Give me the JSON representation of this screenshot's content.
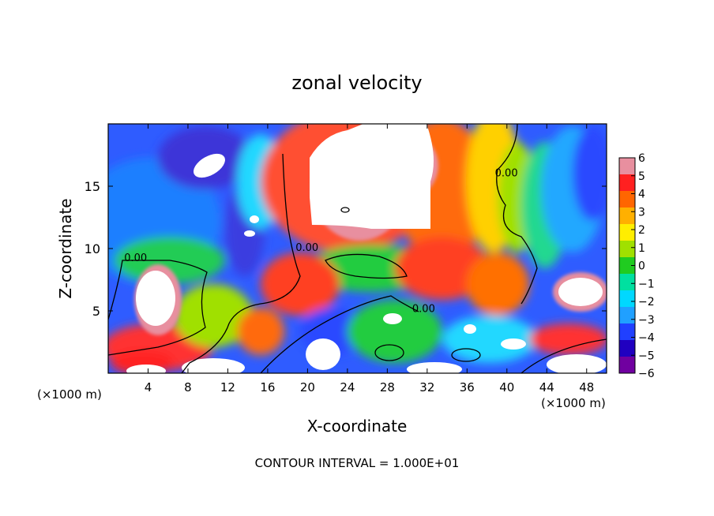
{
  "chart_data": {
    "type": "heatmap",
    "title": "zonal velocity",
    "xlabel": "X-coordinate",
    "ylabel": "Z-coordinate",
    "x_unit_left": "(×1000 m)",
    "x_unit_right": "(×1000 m)",
    "footer": "CONTOUR INTERVAL = 1.000E+01",
    "xlim": [
      0,
      50
    ],
    "ylim": [
      0,
      20
    ],
    "x_ticks": [
      4,
      8,
      12,
      16,
      20,
      24,
      28,
      32,
      36,
      40,
      44,
      48
    ],
    "y_ticks": [
      5,
      10,
      15
    ],
    "colorbar": {
      "ticks": [
        6,
        5,
        4,
        3,
        2,
        1,
        0,
        -1,
        -2,
        -3,
        -4,
        -5,
        -6
      ],
      "range": [
        -6,
        6
      ],
      "colors": [
        "#e88f9f",
        "#ff2020",
        "#ff6600",
        "#ffb000",
        "#ffee00",
        "#a0e000",
        "#20cc20",
        "#00e0a0",
        "#00d8ff",
        "#20a0ff",
        "#2040ff",
        "#2000c0",
        "#7000a0"
      ]
    },
    "contour_labels": [
      {
        "text": "0.00",
        "x": 1.6,
        "z": 9.0
      },
      {
        "text": "0.00",
        "x": 18.8,
        "z": 9.8
      },
      {
        "text": "0.00",
        "x": 38.8,
        "z": 15.8
      },
      {
        "text": "0.00",
        "x": 30.5,
        "z": 4.9
      }
    ],
    "features": [
      {
        "kind": "saturated",
        "sign": "positive",
        "x": 23,
        "z": 15.3,
        "rx": 4.2,
        "rz": 3.5
      },
      {
        "kind": "saturated",
        "sign": "positive",
        "x": 28,
        "z": 16.5,
        "rx": 3.5,
        "rz": 3.0
      },
      {
        "kind": "saturated",
        "sign": "positive",
        "x": 4.5,
        "z": 6.0,
        "rx": 1.8,
        "rz": 2.3
      },
      {
        "kind": "saturated",
        "sign": "positive",
        "x": 47,
        "z": 6.5,
        "rx": 2.0,
        "rz": 1.3
      },
      {
        "kind": "saturated",
        "sign": "negative",
        "x": 9.0,
        "z": 16.8,
        "rx": 1.3,
        "rz": 0.9
      },
      {
        "kind": "saturated",
        "sign": "negative",
        "x": 14.2,
        "z": 12.0,
        "rx": 0.6,
        "rz": 0.5
      },
      {
        "kind": "saturated",
        "sign": "negative",
        "x": 14.0,
        "z": 11.0,
        "rx": 0.5,
        "rz": 0.4
      },
      {
        "kind": "saturated",
        "sign": "negative",
        "x": 21.5,
        "z": 1.8,
        "rx": 1.6,
        "rz": 1.1
      },
      {
        "kind": "saturated",
        "sign": "negative",
        "x": 28.5,
        "z": 4.3,
        "rx": 1.0,
        "rz": 0.6
      },
      {
        "kind": "saturated",
        "sign": "negative",
        "x": 37.0,
        "z": 3.3,
        "rx": 0.6,
        "rz": 0.5
      },
      {
        "kind": "saturated",
        "sign": "negative",
        "x": 41.0,
        "z": 2.3,
        "rx": 1.2,
        "rz": 0.5
      },
      {
        "kind": "saturated",
        "sign": "negative",
        "x": 4.0,
        "z": 0.4,
        "rx": 2.0,
        "rz": 0.6
      },
      {
        "kind": "saturated",
        "sign": "negative",
        "x": 10.5,
        "z": 0.6,
        "rx": 2.2,
        "rz": 0.8
      },
      {
        "kind": "saturated",
        "sign": "negative",
        "x": 33.0,
        "z": 0.6,
        "rx": 3.5,
        "rz": 0.8
      },
      {
        "kind": "saturated",
        "sign": "negative",
        "x": 47.0,
        "z": 1.0,
        "rx": 3.0,
        "rz": 1.1
      }
    ]
  }
}
